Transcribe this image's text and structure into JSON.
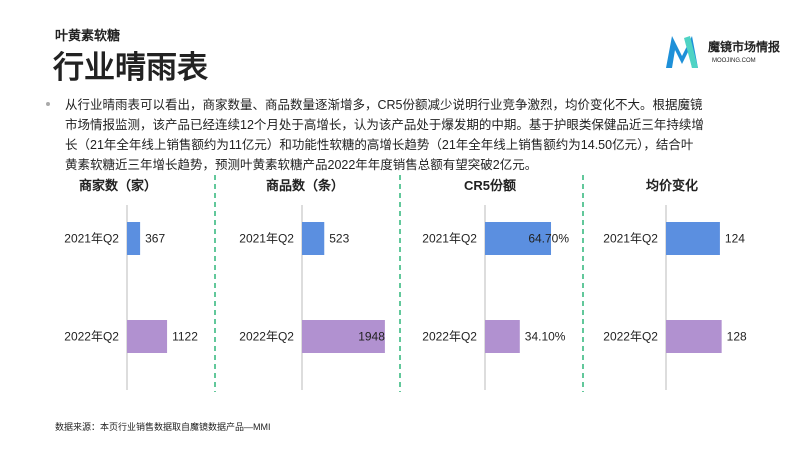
{
  "header": {
    "subtitle": "叶黄素软糖",
    "title": "行业晴雨表"
  },
  "logo": {
    "name": "魔镜市场情报",
    "url": "MOOJING.COM"
  },
  "body": {
    "lines": [
      "从行业晴雨表可以看出，商家数量、商品数量逐渐增多，CR5份额减少说明行业竞争激烈，均价变化不大。根据魔镜",
      "市场情报监测，该产品已经连续12个月处于高增长，认为该产品处于爆发期的中期。基于护眼类保健品近三年持续增",
      "长（21年全年线上销售额约为11亿元）和功能性软糖的高增长趋势（21年全年线上销售额约为14.50亿元），结合叶",
      "黄素软糖近三年增长趋势，预测叶黄素软糖产品2022年年度销售总额有望突破2亿元。"
    ]
  },
  "source": "数据来源：本页行业销售数据取自魔镜数据产品—MMI",
  "chart_data": [
    {
      "type": "bar",
      "title": "商家数（家）",
      "categories": [
        "2021年Q2",
        "2022年Q2"
      ],
      "values": [
        367,
        1122
      ],
      "colors": [
        "#5b8fe0",
        "#b191d0"
      ],
      "xlim": [
        0,
        2800
      ]
    },
    {
      "type": "bar",
      "title": "商品数（条）",
      "categories": [
        "2021年Q2",
        "2022年Q2"
      ],
      "values": [
        523,
        1948
      ],
      "colors": [
        "#5b8fe0",
        "#b191d0"
      ],
      "xlim": [
        0,
        2350
      ]
    },
    {
      "type": "bar",
      "title": "CR5份额",
      "categories": [
        "2021年Q2",
        "2022年Q2"
      ],
      "values": [
        64.7,
        34.1
      ],
      "value_labels": [
        "64.70%",
        "34.10%"
      ],
      "colors": [
        "#5b8fe0",
        "#b191d0"
      ],
      "xlim": [
        0,
        98
      ]
    },
    {
      "type": "bar",
      "title": "均价变化",
      "categories": [
        "2021年Q2",
        "2022年Q2"
      ],
      "values": [
        124,
        128
      ],
      "colors": [
        "#5b8fe0",
        "#b191d0"
      ],
      "xlim": [
        0,
        230
      ]
    }
  ]
}
